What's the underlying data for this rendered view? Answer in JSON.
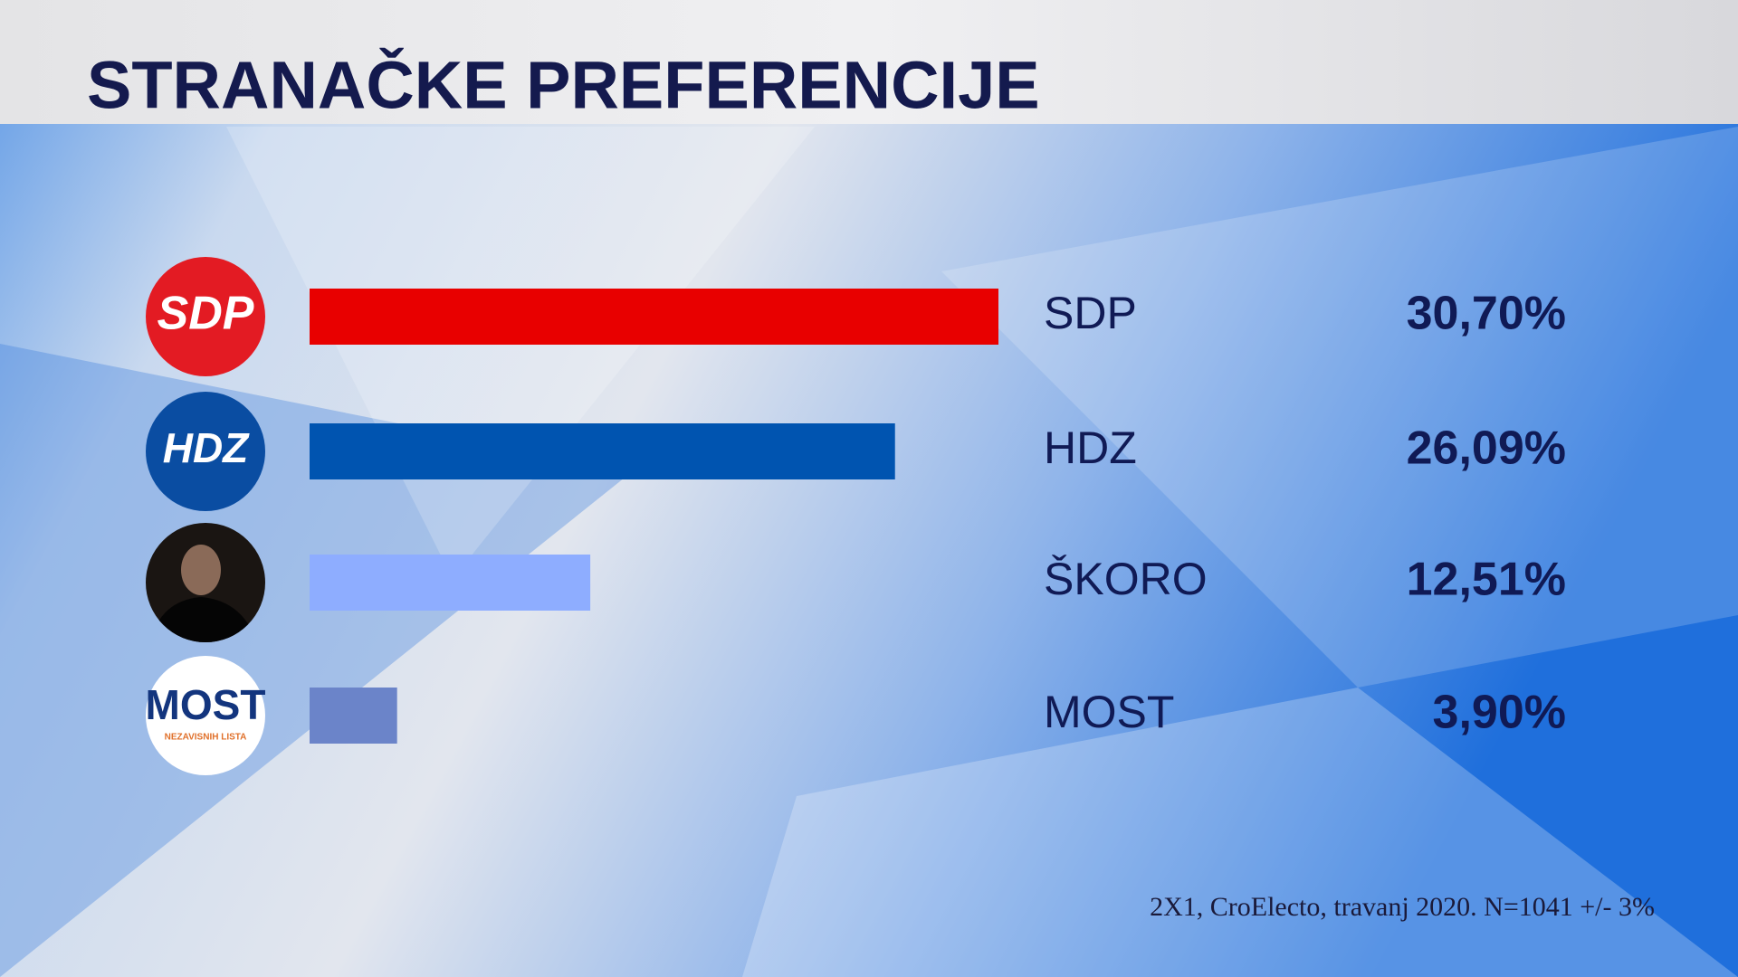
{
  "chart_data": {
    "type": "bar",
    "orientation": "horizontal",
    "title": "STRANAČKE PREFERENCIJE",
    "categories": [
      "SDP",
      "HDZ",
      "ŠKORO",
      "MOST"
    ],
    "values": [
      30.7,
      26.09,
      12.51,
      3.9
    ],
    "value_labels": [
      "30,70%",
      "26,09%",
      "12,51%",
      "3,90%"
    ],
    "colors": [
      "#e80000",
      "#0054b0",
      "#8eadff",
      "#6b84c9"
    ],
    "logos": [
      {
        "text": "SDP"
      },
      {
        "text": "HDZ"
      },
      null,
      {
        "text": "MOST",
        "subtitle": "NEZAVISNIH LISTA"
      }
    ],
    "source": "2X1, CroElecto, travanj 2020. N=1041 +/- 3%"
  }
}
